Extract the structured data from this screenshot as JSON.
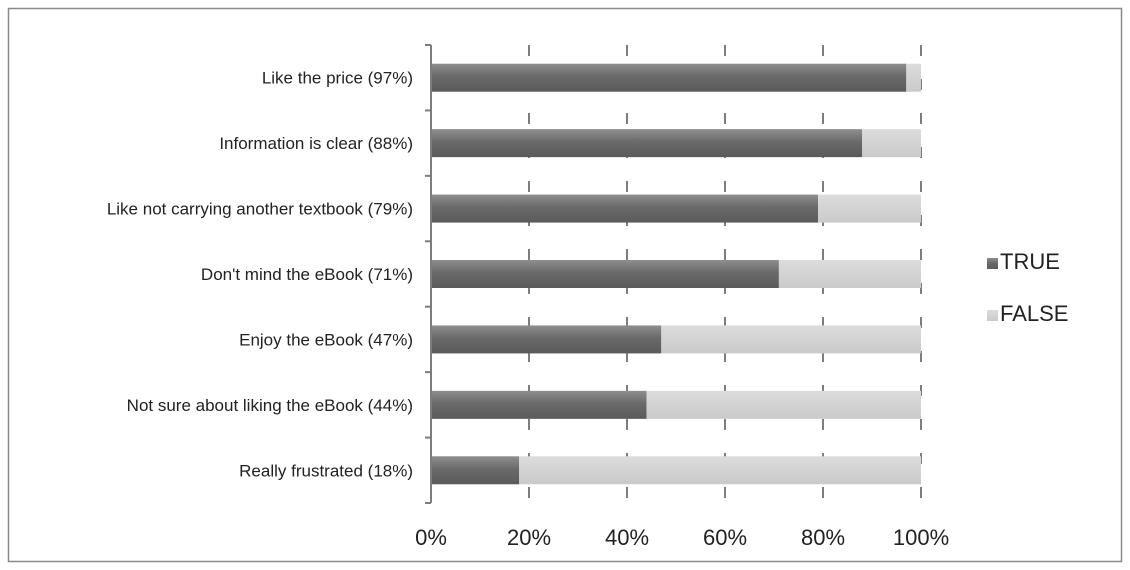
{
  "chart_data": {
    "type": "bar",
    "orientation": "horizontal",
    "stacked": "percent",
    "categories": [
      "Like the price (97%)",
      "Information is clear (88%)",
      "Like not carrying another textbook (79%)",
      "Don't mind the eBook (71%)",
      "Enjoy the eBook (47%)",
      "Not sure about liking the eBook (44%)",
      "Really frustrated (18%)"
    ],
    "series": [
      {
        "name": "TRUE",
        "values": [
          97,
          88,
          79,
          71,
          47,
          44,
          18
        ],
        "color": "#777777"
      },
      {
        "name": "FALSE",
        "values": [
          3,
          12,
          21,
          29,
          53,
          56,
          82
        ],
        "color": "#d4d4d4"
      }
    ],
    "x_ticks": [
      "0%",
      "20%",
      "40%",
      "60%",
      "80%",
      "100%"
    ],
    "xlim": [
      0,
      100
    ],
    "title": "",
    "xlabel": "",
    "ylabel": "",
    "grid": "dashed vertical",
    "legend_position": "right"
  }
}
